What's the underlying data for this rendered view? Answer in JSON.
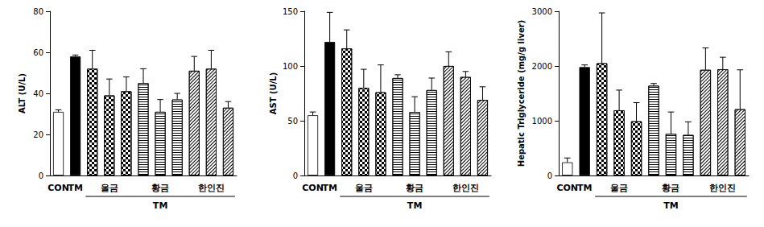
{
  "chart_data": [
    {
      "type": "bar",
      "y_label": "ALT (U/L)",
      "categories": [
        "CON",
        "TM",
        null,
        "울금",
        null,
        null,
        "황금",
        null,
        null,
        "한인진",
        null
      ],
      "values": [
        31,
        58,
        52,
        39,
        41,
        45,
        31,
        37,
        51,
        52,
        33
      ],
      "errors": [
        1,
        0.7,
        9,
        8,
        7,
        7,
        6,
        3,
        7,
        9,
        3
      ],
      "colors": [
        "#ffffff",
        "#000000",
        "#ffffff",
        "#ffffff",
        "#ffffff",
        "#ffffff",
        "#ffffff",
        "#ffffff",
        "#ffffff",
        "#ffffff",
        "#ffffff"
      ],
      "ylim": [
        0,
        80
      ],
      "yticks": [
        0,
        20,
        40,
        60,
        80
      ],
      "grid": false,
      "annotations": [
        {
          "text": "TM"
        }
      ]
    },
    {
      "type": "bar",
      "y_label": "AST (U/L)",
      "categories": [
        "CON",
        "TM",
        null,
        "울금",
        null,
        null,
        "황금",
        null,
        null,
        "한인진",
        null
      ],
      "values": [
        55,
        122,
        116,
        80,
        76,
        89,
        58,
        78,
        100,
        90,
        69
      ],
      "errors": [
        3,
        27,
        17,
        17,
        25,
        3,
        14,
        11,
        13,
        5,
        12
      ],
      "colors": [
        "#ffffff",
        "#000000",
        "#ffffff",
        "#ffffff",
        "#ffffff",
        "#ffffff",
        "#ffffff",
        "#ffffff",
        "#ffffff",
        "#ffffff",
        "#ffffff"
      ],
      "ylim": [
        0,
        150
      ],
      "yticks": [
        0,
        50,
        100,
        150
      ],
      "grid": false,
      "annotations": [
        {
          "text": "TM"
        }
      ]
    },
    {
      "type": "bar",
      "y_label": "Hepatic Triglyceride (mg/g liver)",
      "categories": [
        "CON",
        "TM",
        null,
        "울금",
        null,
        null,
        "황금",
        null,
        null,
        "한인진",
        null
      ],
      "values": [
        240,
        1980,
        2050,
        1190,
        990,
        1640,
        760,
        740,
        1930,
        1940,
        1210
      ],
      "errors": [
        80,
        40,
        920,
        370,
        340,
        40,
        400,
        240,
        400,
        220,
        720
      ],
      "colors": [
        "#ffffff",
        "#000000",
        "#ffffff",
        "#ffffff",
        "#ffffff",
        "#ffffff",
        "#ffffff",
        "#ffffff",
        "#ffffff",
        "#ffffff",
        "#ffffff"
      ],
      "ylim": [
        0,
        3000
      ],
      "yticks": [
        0,
        1000,
        2000,
        3000
      ],
      "grid": false,
      "annotations": [
        {
          "text": "TM"
        }
      ]
    }
  ]
}
